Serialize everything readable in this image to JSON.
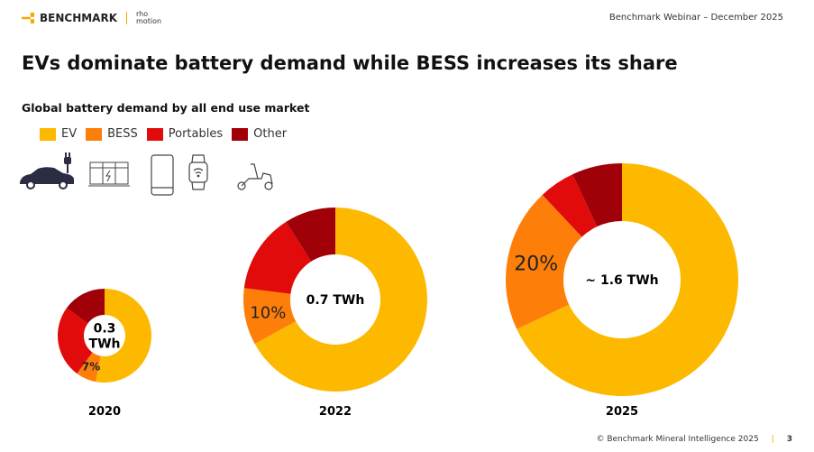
{
  "header": {
    "brand": "BENCHMARK",
    "partner": "rho motion",
    "right_text": "Benchmark Webinar – December 2025"
  },
  "title": "EVs dominate battery demand while BESS increases its share",
  "footer": {
    "copyright": "© Benchmark Mineral Intelligence 2025",
    "page": "3"
  },
  "icons": [
    "car-charging-icon",
    "battery-storage-icon",
    "smartphone-icon",
    "smartwatch-icon",
    "scooter-icon"
  ],
  "chart_data": {
    "type": "pie",
    "subtype": "donut",
    "title": "Global battery demand by all end use market",
    "legend": [
      "EV",
      "BESS",
      "Portables",
      "Other"
    ],
    "legend_placement": "top-left",
    "colors": {
      "EV": "#fdb900",
      "BESS": "#fd7f0a",
      "Portables": "#e20b0b",
      "Other": "#a00008"
    },
    "charts": [
      {
        "year": "2020",
        "total_label": "0.3 TWh",
        "shares": {
          "EV": 53,
          "BESS": 7,
          "Portables": 25,
          "Other": 15
        },
        "bess_label": "7%"
      },
      {
        "year": "2022",
        "total_label": "0.7 TWh",
        "shares": {
          "EV": 67,
          "BESS": 10,
          "Portables": 14,
          "Other": 9
        },
        "bess_label": "10%"
      },
      {
        "year": "2025",
        "total_label": "~ 1.6 TWh",
        "shares": {
          "EV": 68,
          "BESS": 20,
          "Portables": 5,
          "Other": 7
        },
        "bess_label": "20%"
      }
    ]
  }
}
